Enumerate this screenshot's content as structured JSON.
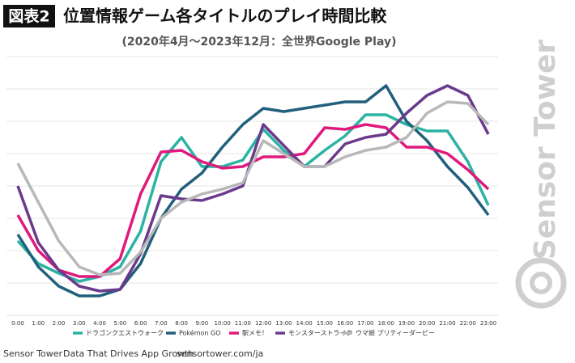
{
  "chart_data": {
    "type": "line",
    "badge": "図表2",
    "title": "位置情報ゲーム各タイトルのプレイ時間比較",
    "subtitle": "(2020年4月〜2023年12月：全世界Google Play)",
    "categories": [
      "0:00",
      "1:00",
      "2:00",
      "3:00",
      "4:00",
      "5:00",
      "6:00",
      "7:00",
      "8:00",
      "9:00",
      "10:00",
      "11:00",
      "12:00",
      "13:00",
      "14:00",
      "15:00",
      "16:00",
      "17:00",
      "18:00",
      "19:00",
      "20:00",
      "21:00",
      "22:00",
      "23:00"
    ],
    "series": [
      {
        "name": "ドラゴンクエストウォーク",
        "color": "#2bb3a3",
        "values": [
          2.3,
          1.6,
          1.3,
          1.05,
          1.2,
          1.5,
          2.6,
          4.75,
          5.5,
          4.6,
          4.6,
          4.8,
          5.75,
          5.1,
          4.6,
          5.1,
          5.55,
          6.2,
          6.2,
          5.9,
          5.7,
          5.7,
          4.75,
          3.4
        ]
      },
      {
        "name": "Pokémon GO",
        "color": "#21607c",
        "values": [
          2.5,
          1.5,
          0.9,
          0.6,
          0.6,
          0.8,
          1.6,
          3.0,
          3.9,
          4.4,
          5.2,
          5.9,
          6.4,
          6.3,
          6.4,
          6.5,
          6.6,
          6.6,
          7.1,
          6.0,
          5.4,
          4.6,
          3.95,
          3.1
        ]
      },
      {
        "name": "駅メモ！",
        "color": "#e0197d",
        "values": [
          3.1,
          2.0,
          1.4,
          1.2,
          1.2,
          1.75,
          3.75,
          5.05,
          5.1,
          4.75,
          4.55,
          4.6,
          4.9,
          4.9,
          5.0,
          5.8,
          5.75,
          5.9,
          5.8,
          5.2,
          5.2,
          5.0,
          4.5,
          3.9
        ]
      },
      {
        "name": "モンスターストライク",
        "color": "#6b3a8c",
        "values": [
          4.0,
          2.25,
          1.4,
          0.9,
          0.75,
          0.8,
          1.9,
          3.7,
          3.6,
          3.55,
          3.75,
          4.0,
          5.9,
          5.25,
          4.6,
          4.6,
          5.3,
          5.5,
          5.6,
          6.25,
          6.8,
          7.1,
          6.8,
          5.6
        ]
      },
      {
        "name": "ウマ娘 プリティーダービー",
        "color": "#b8b8b8",
        "values": [
          4.7,
          3.5,
          2.3,
          1.5,
          1.25,
          1.3,
          1.95,
          3.0,
          3.5,
          3.75,
          3.9,
          4.1,
          5.4,
          5.0,
          4.6,
          4.6,
          4.9,
          5.1,
          5.2,
          5.5,
          6.25,
          6.6,
          6.55,
          5.9
        ]
      }
    ],
    "ylim": [
      0,
      8
    ],
    "yticks": [
      1,
      2,
      3,
      4,
      5,
      6,
      7,
      8
    ],
    "grid": true
  },
  "footer": {
    "brand": "Sensor Tower",
    "tagline": "Data That Drives App Growth",
    "url": "sensortower.com/ja"
  },
  "watermark": "Sensor Tower"
}
